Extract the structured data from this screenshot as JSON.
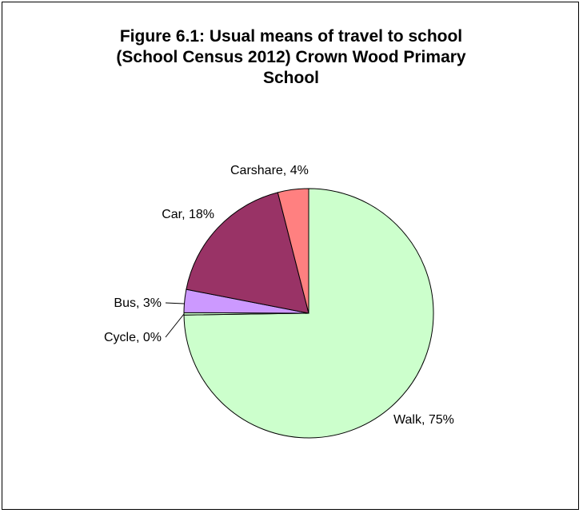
{
  "chart_data": {
    "type": "pie",
    "title_lines": [
      "Figure 6.1: Usual means of travel to school",
      "(School Census 2012) Crown Wood Primary",
      "School"
    ],
    "start_angle_deg": 0,
    "direction": "clockwise",
    "slices": [
      {
        "name": "Walk",
        "value": 75,
        "label": "Walk, 75%",
        "color": "#ccffcc"
      },
      {
        "name": "Cycle",
        "value": 0.3,
        "label": "Cycle, 0%",
        "color": "#ccffcc"
      },
      {
        "name": "Bus",
        "value": 3,
        "label": "Bus, 3%",
        "color": "#cc99ff"
      },
      {
        "name": "Car",
        "value": 18,
        "label": "Car, 18%",
        "color": "#993366"
      },
      {
        "name": "Carshare",
        "value": 4,
        "label": "Carshare, 4%",
        "color": "#ff8080"
      }
    ],
    "legend": "none"
  }
}
